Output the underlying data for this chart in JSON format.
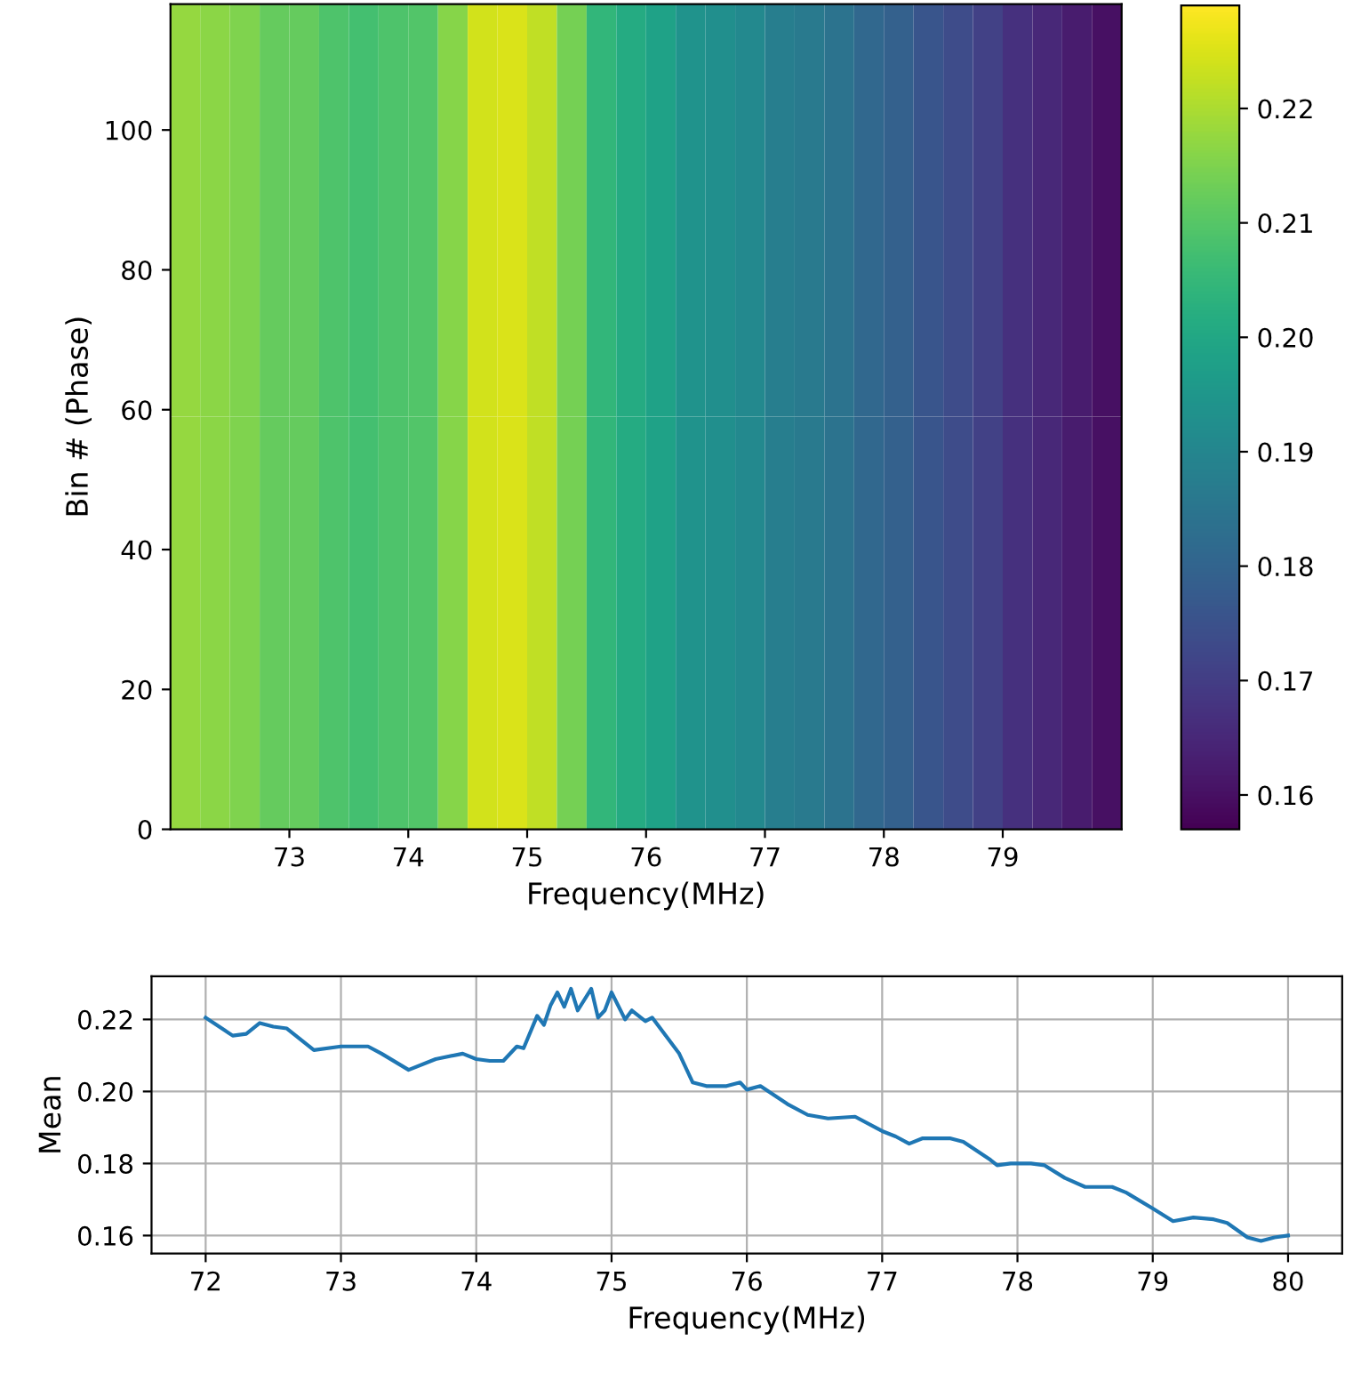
{
  "chart_data": [
    {
      "type": "heatmap",
      "xlabel": "Frequency(MHz)",
      "ylabel": "Bin # (Phase)",
      "xlim": [
        72.0,
        80.0
      ],
      "ylim": [
        0,
        118
      ],
      "xticks": [
        73,
        74,
        75,
        76,
        77,
        78,
        79
      ],
      "yticks": [
        0,
        20,
        40,
        60,
        80,
        100
      ],
      "clim": [
        0.157,
        0.229
      ],
      "cticks": [
        0.16,
        0.17,
        0.18,
        0.19,
        {
          "value": 0.2,
          "label": "0.20"
        },
        0.21,
        0.22
      ],
      "cells": [
        [
          0.2175,
          0.2165,
          0.215,
          0.212,
          0.212,
          0.209,
          0.2075,
          0.209,
          0.2095,
          0.216,
          0.224,
          0.225,
          0.222,
          0.214,
          0.2045,
          0.201,
          0.1985,
          0.194,
          0.1925,
          0.191,
          0.1875,
          0.1865,
          0.1845,
          0.181,
          0.179,
          0.176,
          0.1735,
          0.171,
          0.167,
          0.165,
          0.1625,
          0.16
        ],
        [
          0.2175,
          0.2165,
          0.215,
          0.212,
          0.212,
          0.209,
          0.2075,
          0.209,
          0.2095,
          0.216,
          0.224,
          0.225,
          0.222,
          0.214,
          0.2045,
          0.201,
          0.1985,
          0.194,
          0.1925,
          0.191,
          0.1875,
          0.1865,
          0.1845,
          0.181,
          0.179,
          0.176,
          0.1735,
          0.171,
          0.167,
          0.165,
          0.1625,
          0.16
        ]
      ]
    },
    {
      "type": "line",
      "xlabel": "Frequency(MHz)",
      "ylabel": "Mean",
      "xlim": [
        71.6,
        80.4
      ],
      "ylim": [
        0.155,
        0.232
      ],
      "xticks": [
        72,
        73,
        74,
        75,
        76,
        77,
        78,
        79,
        80
      ],
      "yticks": [
        0.16,
        0.18,
        {
          "value": 0.2,
          "label": "0.20"
        },
        0.22
      ],
      "grid": true,
      "series": [
        {
          "color": "#1f77b4",
          "x": [
            72.0,
            72.1,
            72.2,
            72.3,
            72.4,
            72.5,
            72.6,
            72.8,
            73.0,
            73.2,
            73.3,
            73.5,
            73.7,
            73.9,
            74.0,
            74.1,
            74.2,
            74.3,
            74.35,
            74.45,
            74.5,
            74.55,
            74.6,
            74.65,
            74.7,
            74.75,
            74.85,
            74.9,
            74.95,
            75.0,
            75.1,
            75.15,
            75.25,
            75.3,
            75.4,
            75.5,
            75.6,
            75.7,
            75.85,
            75.95,
            76.0,
            76.1,
            76.3,
            76.45,
            76.6,
            76.8,
            77.0,
            77.1,
            77.2,
            77.3,
            77.5,
            77.6,
            77.8,
            77.85,
            77.95,
            78.1,
            78.2,
            78.35,
            78.5,
            78.7,
            78.8,
            79.0,
            79.15,
            79.3,
            79.45,
            79.55,
            79.7,
            79.8,
            79.9,
            80.0
          ],
          "values": [
            0.2205,
            0.218,
            0.2155,
            0.216,
            0.219,
            0.218,
            0.2175,
            0.2115,
            0.2125,
            0.2125,
            0.2105,
            0.206,
            0.209,
            0.2105,
            0.209,
            0.2085,
            0.2085,
            0.2125,
            0.212,
            0.221,
            0.2185,
            0.224,
            0.2275,
            0.2235,
            0.2285,
            0.2225,
            0.2285,
            0.2205,
            0.2225,
            0.2275,
            0.22,
            0.2225,
            0.2195,
            0.2205,
            0.2155,
            0.2105,
            0.2025,
            0.2015,
            0.2015,
            0.2025,
            0.2005,
            0.2015,
            0.1965,
            0.1935,
            0.1925,
            0.193,
            0.189,
            0.1875,
            0.1855,
            0.187,
            0.187,
            0.186,
            0.181,
            0.1795,
            0.18,
            0.18,
            0.1795,
            0.176,
            0.1735,
            0.1735,
            0.172,
            0.1675,
            0.164,
            0.165,
            0.1645,
            0.1635,
            0.1595,
            0.1585,
            0.1595,
            0.16
          ]
        }
      ]
    }
  ]
}
